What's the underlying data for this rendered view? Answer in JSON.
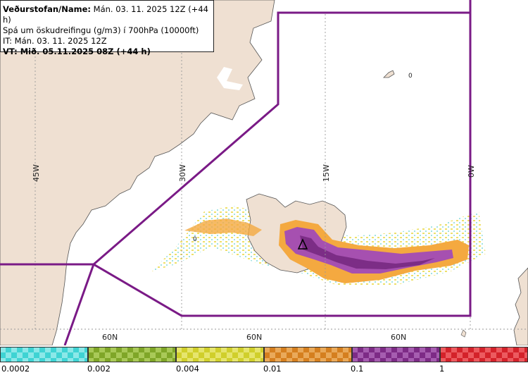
{
  "header": {
    "line1_bold": "Veðurstofan/Name:",
    "line1_rest": " Mán. 03. 11. 2025 12Z (+44 h)",
    "line2": "Spá um öskudreifingu (g/m3) í 700hPa (10000ft)",
    "line3": "IT: Mán. 03. 11. 2025 12Z",
    "line4": "VT: Mið. 05.11.2025 08Z (+44 h)"
  },
  "map": {
    "longitude_labels": [
      "45W",
      "30W",
      "15W",
      "0W"
    ],
    "latitude_labels": [
      "60N",
      "60N",
      "60N"
    ],
    "contour_labels": [
      "0",
      "0"
    ],
    "colors": {
      "sea": "#ffffff",
      "land": "#efe0d2",
      "coast": "#555555",
      "fir_boundary": "#7a1a86",
      "graticule": "#9a9a9a"
    },
    "volcano_icon": "volcano-triangle-icon"
  },
  "legend": {
    "labels": [
      "0.0002",
      "0.002",
      "0.004",
      "0.01",
      "0.1",
      "1"
    ],
    "colors": [
      [
        "#3fd3d3",
        "#8be8e8"
      ],
      [
        "#7fa628",
        "#a9c958"
      ],
      [
        "#d0cf2b",
        "#e6e56d"
      ],
      [
        "#d57f1f",
        "#e9a95a"
      ],
      [
        "#7d2b86",
        "#a65db0"
      ],
      [
        "#d4222a",
        "#ec5a5f"
      ]
    ]
  }
}
